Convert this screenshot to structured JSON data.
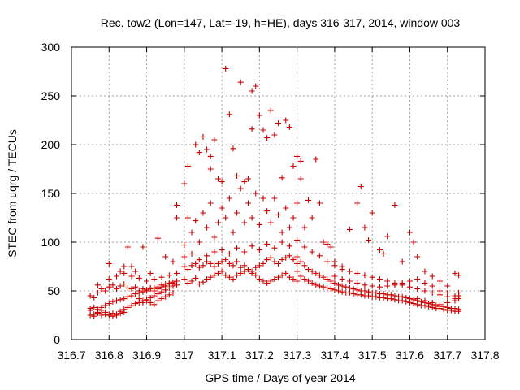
{
  "chart_data": {
    "type": "scatter",
    "title": "Rec. tow2 (Lon=147, Lat=-19, h=HE), days 316-317, 2014, window 003",
    "xlabel": "GPS time / Days of year 2014",
    "ylabel": "STEC from uqrg / TECUs",
    "xlim": [
      316.7,
      317.8
    ],
    "ylim": [
      0,
      300
    ],
    "xticks": [
      "316.7",
      "316.8",
      "316.9",
      "317",
      "317.1",
      "317.2",
      "317.3",
      "317.4",
      "317.5",
      "317.6",
      "317.7",
      "317.8"
    ],
    "yticks": [
      "0",
      "50",
      "100",
      "150",
      "200",
      "250",
      "300"
    ],
    "grid": true,
    "marker": "plus",
    "color": "#cc0000",
    "points": [
      [
        316.75,
        30
      ],
      [
        316.76,
        26
      ],
      [
        316.77,
        28
      ],
      [
        316.78,
        30
      ],
      [
        316.79,
        28
      ],
      [
        316.8,
        26
      ],
      [
        316.81,
        27
      ],
      [
        316.82,
        26
      ],
      [
        316.83,
        29
      ],
      [
        316.84,
        31
      ],
      [
        316.85,
        33
      ],
      [
        316.86,
        35
      ],
      [
        316.87,
        37
      ],
      [
        316.88,
        38
      ],
      [
        316.89,
        40
      ],
      [
        316.9,
        41
      ],
      [
        316.91,
        43
      ],
      [
        316.92,
        45
      ],
      [
        316.93,
        47
      ],
      [
        316.94,
        49
      ],
      [
        316.95,
        51
      ],
      [
        316.96,
        53
      ],
      [
        316.97,
        55
      ],
      [
        316.98,
        56
      ],
      [
        316.75,
        25
      ],
      [
        316.76,
        24
      ],
      [
        316.77,
        27
      ],
      [
        316.78,
        25
      ],
      [
        316.79,
        26
      ],
      [
        316.8,
        25
      ],
      [
        316.81,
        24
      ],
      [
        316.82,
        25
      ],
      [
        316.83,
        27
      ],
      [
        316.84,
        28
      ],
      [
        316.75,
        32
      ],
      [
        316.76,
        33
      ],
      [
        316.77,
        31
      ],
      [
        316.78,
        33
      ],
      [
        316.79,
        35
      ],
      [
        316.8,
        37
      ],
      [
        316.81,
        39
      ],
      [
        316.82,
        40
      ],
      [
        316.83,
        41
      ],
      [
        316.84,
        42
      ],
      [
        316.85,
        44
      ],
      [
        316.86,
        45
      ],
      [
        316.87,
        47
      ],
      [
        316.88,
        48
      ],
      [
        316.89,
        49
      ],
      [
        316.9,
        50
      ],
      [
        316.91,
        52
      ],
      [
        316.92,
        53
      ],
      [
        316.93,
        54
      ],
      [
        316.94,
        56
      ],
      [
        316.95,
        57
      ],
      [
        316.96,
        58
      ],
      [
        316.97,
        59
      ],
      [
        316.98,
        60
      ],
      [
        316.75,
        45
      ],
      [
        316.76,
        43
      ],
      [
        316.77,
        48
      ],
      [
        316.78,
        52
      ],
      [
        316.79,
        50
      ],
      [
        316.8,
        54
      ],
      [
        316.81,
        56
      ],
      [
        316.82,
        52
      ],
      [
        316.83,
        55
      ],
      [
        316.84,
        57
      ],
      [
        316.85,
        53
      ],
      [
        316.86,
        52
      ],
      [
        316.87,
        54
      ],
      [
        316.88,
        50
      ],
      [
        316.89,
        52
      ],
      [
        316.9,
        51
      ],
      [
        316.91,
        53
      ],
      [
        316.92,
        50
      ],
      [
        316.93,
        52
      ],
      [
        316.94,
        54
      ],
      [
        316.95,
        55
      ],
      [
        316.96,
        57
      ],
      [
        316.97,
        58
      ],
      [
        316.8,
        62
      ],
      [
        316.82,
        65
      ],
      [
        316.84,
        68
      ],
      [
        316.86,
        65
      ],
      [
        316.88,
        63
      ],
      [
        316.9,
        60
      ],
      [
        316.92,
        62
      ],
      [
        316.94,
        64
      ],
      [
        316.96,
        66
      ],
      [
        316.98,
        68
      ],
      [
        316.77,
        56
      ],
      [
        316.8,
        78
      ],
      [
        316.84,
        75
      ],
      [
        316.85,
        95
      ],
      [
        316.86,
        75
      ],
      [
        316.89,
        95
      ],
      [
        316.93,
        104
      ],
      [
        316.95,
        85
      ],
      [
        316.97,
        80
      ],
      [
        316.98,
        125
      ],
      [
        316.98,
        138
      ],
      [
        316.91,
        68
      ],
      [
        316.87,
        70
      ],
      [
        316.83,
        70
      ],
      [
        316.88,
        42
      ],
      [
        316.89,
        38
      ],
      [
        316.9,
        40
      ],
      [
        316.91,
        38
      ],
      [
        316.92,
        36
      ],
      [
        316.93,
        40
      ],
      [
        316.94,
        42
      ],
      [
        316.95,
        44
      ],
      [
        316.96,
        46
      ],
      [
        316.97,
        48
      ],
      [
        317.0,
        62
      ],
      [
        317.01,
        58
      ],
      [
        317.02,
        60
      ],
      [
        317.03,
        63
      ],
      [
        317.04,
        57
      ],
      [
        317.05,
        59
      ],
      [
        317.06,
        62
      ],
      [
        317.07,
        64
      ],
      [
        317.08,
        66
      ],
      [
        317.09,
        68
      ],
      [
        317.1,
        70
      ],
      [
        317.11,
        66
      ],
      [
        317.12,
        64
      ],
      [
        317.13,
        62
      ],
      [
        317.14,
        66
      ],
      [
        317.15,
        68
      ],
      [
        317.16,
        70
      ],
      [
        317.17,
        72
      ],
      [
        317.18,
        68
      ],
      [
        317.19,
        66
      ],
      [
        317.2,
        62
      ],
      [
        317.21,
        60
      ],
      [
        317.22,
        58
      ],
      [
        317.23,
        60
      ],
      [
        317.24,
        62
      ],
      [
        317.25,
        64
      ],
      [
        317.26,
        66
      ],
      [
        317.27,
        68
      ],
      [
        317.28,
        64
      ],
      [
        317.29,
        62
      ],
      [
        317.3,
        60
      ],
      [
        317.0,
        75
      ],
      [
        317.01,
        72
      ],
      [
        317.02,
        76
      ],
      [
        317.03,
        78
      ],
      [
        317.04,
        74
      ],
      [
        317.05,
        76
      ],
      [
        317.06,
        80
      ],
      [
        317.07,
        78
      ],
      [
        317.08,
        75
      ],
      [
        317.09,
        78
      ],
      [
        317.1,
        80
      ],
      [
        317.11,
        82
      ],
      [
        317.12,
        78
      ],
      [
        317.13,
        76
      ],
      [
        317.14,
        80
      ],
      [
        317.15,
        74
      ],
      [
        317.16,
        76
      ],
      [
        317.17,
        72
      ],
      [
        317.18,
        70
      ],
      [
        317.19,
        74
      ],
      [
        317.2,
        76
      ],
      [
        317.21,
        78
      ],
      [
        317.22,
        82
      ],
      [
        317.23,
        84
      ],
      [
        317.24,
        80
      ],
      [
        317.25,
        78
      ],
      [
        317.26,
        82
      ],
      [
        317.27,
        84
      ],
      [
        317.28,
        86
      ],
      [
        317.29,
        82
      ],
      [
        317.3,
        78
      ],
      [
        317.0,
        85
      ],
      [
        317.02,
        88
      ],
      [
        317.04,
        82
      ],
      [
        317.06,
        86
      ],
      [
        317.08,
        90
      ],
      [
        317.1,
        92
      ],
      [
        317.12,
        88
      ],
      [
        317.14,
        94
      ],
      [
        317.16,
        90
      ],
      [
        317.18,
        96
      ],
      [
        317.2,
        92
      ],
      [
        317.22,
        98
      ],
      [
        317.24,
        94
      ],
      [
        317.26,
        100
      ],
      [
        317.28,
        96
      ],
      [
        317.3,
        102
      ],
      [
        317.0,
        97
      ],
      [
        317.01,
        125
      ],
      [
        317.02,
        110
      ],
      [
        317.03,
        122
      ],
      [
        317.04,
        100
      ],
      [
        317.05,
        130
      ],
      [
        317.06,
        115
      ],
      [
        317.07,
        140
      ],
      [
        317.08,
        105
      ],
      [
        317.09,
        120
      ],
      [
        317.1,
        135
      ],
      [
        317.11,
        125
      ],
      [
        317.12,
        145
      ],
      [
        317.13,
        110
      ],
      [
        317.14,
        130
      ],
      [
        317.15,
        155
      ],
      [
        317.16,
        120
      ],
      [
        317.17,
        140
      ],
      [
        317.18,
        125
      ],
      [
        317.19,
        150
      ],
      [
        317.2,
        118
      ],
      [
        317.21,
        145
      ],
      [
        317.22,
        132
      ],
      [
        317.23,
        120
      ],
      [
        317.24,
        145
      ],
      [
        317.25,
        128
      ],
      [
        317.26,
        110
      ],
      [
        317.27,
        135
      ],
      [
        317.28,
        115
      ],
      [
        317.29,
        125
      ],
      [
        317.3,
        140
      ],
      [
        317.0,
        160
      ],
      [
        317.01,
        178
      ],
      [
        317.03,
        200
      ],
      [
        317.04,
        192
      ],
      [
        317.05,
        208
      ],
      [
        317.06,
        195
      ],
      [
        317.07,
        188
      ],
      [
        317.07,
        175
      ],
      [
        317.08,
        205
      ],
      [
        317.09,
        165
      ],
      [
        317.1,
        162
      ],
      [
        317.11,
        278
      ],
      [
        317.12,
        231
      ],
      [
        317.13,
        196
      ],
      [
        317.14,
        168
      ],
      [
        317.15,
        264
      ],
      [
        317.16,
        162
      ],
      [
        317.17,
        165
      ],
      [
        317.18,
        216
      ],
      [
        317.18,
        255
      ],
      [
        317.19,
        260
      ],
      [
        317.2,
        230
      ],
      [
        317.21,
        215
      ],
      [
        317.22,
        207
      ],
      [
        317.23,
        235
      ],
      [
        317.24,
        210
      ],
      [
        317.25,
        222
      ],
      [
        317.26,
        166
      ],
      [
        317.27,
        225
      ],
      [
        317.28,
        218
      ],
      [
        317.29,
        178
      ],
      [
        317.3,
        188
      ],
      [
        317.31,
        183
      ],
      [
        317.31,
        165
      ],
      [
        317.3,
        70
      ],
      [
        317.31,
        65
      ],
      [
        317.32,
        62
      ],
      [
        317.33,
        60
      ],
      [
        317.34,
        58
      ],
      [
        317.35,
        56
      ],
      [
        317.36,
        55
      ],
      [
        317.37,
        54
      ],
      [
        317.38,
        53
      ],
      [
        317.39,
        52
      ],
      [
        317.4,
        51
      ],
      [
        317.41,
        50
      ],
      [
        317.42,
        49
      ],
      [
        317.43,
        48
      ],
      [
        317.44,
        48
      ],
      [
        317.45,
        47
      ],
      [
        317.46,
        46
      ],
      [
        317.47,
        46
      ],
      [
        317.48,
        45
      ],
      [
        317.49,
        45
      ],
      [
        317.5,
        44
      ],
      [
        317.51,
        44
      ],
      [
        317.52,
        43
      ],
      [
        317.53,
        43
      ],
      [
        317.54,
        42
      ],
      [
        317.55,
        42
      ],
      [
        317.56,
        41
      ],
      [
        317.57,
        40
      ],
      [
        317.58,
        40
      ],
      [
        317.59,
        39
      ],
      [
        317.6,
        38
      ],
      [
        317.61,
        37
      ],
      [
        317.62,
        36
      ],
      [
        317.63,
        35
      ],
      [
        317.64,
        35
      ],
      [
        317.65,
        34
      ],
      [
        317.66,
        33
      ],
      [
        317.67,
        32
      ],
      [
        317.68,
        32
      ],
      [
        317.69,
        31
      ],
      [
        317.7,
        30
      ],
      [
        317.71,
        30
      ],
      [
        317.72,
        29
      ],
      [
        317.73,
        29
      ],
      [
        317.3,
        85
      ],
      [
        317.31,
        80
      ],
      [
        317.32,
        76
      ],
      [
        317.33,
        72
      ],
      [
        317.34,
        70
      ],
      [
        317.35,
        68
      ],
      [
        317.36,
        66
      ],
      [
        317.37,
        64
      ],
      [
        317.38,
        62
      ],
      [
        317.39,
        60
      ],
      [
        317.4,
        58
      ],
      [
        317.41,
        56
      ],
      [
        317.42,
        55
      ],
      [
        317.43,
        54
      ],
      [
        317.44,
        53
      ],
      [
        317.45,
        52
      ],
      [
        317.46,
        51
      ],
      [
        317.47,
        50
      ],
      [
        317.48,
        50
      ],
      [
        317.49,
        49
      ],
      [
        317.5,
        48
      ],
      [
        317.51,
        48
      ],
      [
        317.52,
        47
      ],
      [
        317.53,
        47
      ],
      [
        317.54,
        46
      ],
      [
        317.55,
        46
      ],
      [
        317.56,
        45
      ],
      [
        317.57,
        44
      ],
      [
        317.58,
        44
      ],
      [
        317.59,
        43
      ],
      [
        317.6,
        42
      ],
      [
        317.61,
        41
      ],
      [
        317.62,
        40
      ],
      [
        317.63,
        39
      ],
      [
        317.64,
        38
      ],
      [
        317.65,
        37
      ],
      [
        317.66,
        36
      ],
      [
        317.67,
        35
      ],
      [
        317.68,
        34
      ],
      [
        317.69,
        34
      ],
      [
        317.7,
        33
      ],
      [
        317.71,
        32
      ],
      [
        317.72,
        32
      ],
      [
        317.73,
        31
      ],
      [
        317.32,
        95
      ],
      [
        317.34,
        90
      ],
      [
        317.36,
        86
      ],
      [
        317.38,
        80
      ],
      [
        317.4,
        76
      ],
      [
        317.42,
        72
      ],
      [
        317.44,
        70
      ],
      [
        317.46,
        68
      ],
      [
        317.48,
        66
      ],
      [
        317.5,
        64
      ],
      [
        317.52,
        62
      ],
      [
        317.54,
        60
      ],
      [
        317.56,
        58
      ],
      [
        317.58,
        56
      ],
      [
        317.6,
        54
      ],
      [
        317.62,
        52
      ],
      [
        317.64,
        50
      ],
      [
        317.66,
        48
      ],
      [
        317.68,
        46
      ],
      [
        317.7,
        44
      ],
      [
        317.72,
        42
      ],
      [
        317.73,
        45
      ],
      [
        317.32,
        115
      ],
      [
        317.33,
        143
      ],
      [
        317.34,
        125
      ],
      [
        317.35,
        185
      ],
      [
        317.36,
        140
      ],
      [
        317.37,
        100
      ],
      [
        317.38,
        98
      ],
      [
        317.39,
        95
      ],
      [
        317.4,
        80
      ],
      [
        317.42,
        75
      ],
      [
        317.44,
        113
      ],
      [
        317.46,
        140
      ],
      [
        317.47,
        157
      ],
      [
        317.48,
        115
      ],
      [
        317.49,
        102
      ],
      [
        317.5,
        130
      ],
      [
        317.52,
        92
      ],
      [
        317.53,
        88
      ],
      [
        317.54,
        106
      ],
      [
        317.56,
        138
      ],
      [
        317.58,
        80
      ],
      [
        317.6,
        110
      ],
      [
        317.61,
        100
      ],
      [
        317.62,
        85
      ],
      [
        317.64,
        70
      ],
      [
        317.66,
        65
      ],
      [
        317.68,
        60
      ],
      [
        317.7,
        55
      ],
      [
        317.72,
        68
      ],
      [
        317.73,
        66
      ],
      [
        317.4,
        65
      ],
      [
        317.42,
        62
      ],
      [
        317.44,
        60
      ],
      [
        317.46,
        58
      ],
      [
        317.48,
        56
      ],
      [
        317.5,
        55
      ],
      [
        317.52,
        54
      ],
      [
        317.54,
        55
      ],
      [
        317.56,
        56
      ],
      [
        317.58,
        58
      ],
      [
        317.6,
        60
      ],
      [
        317.62,
        62
      ],
      [
        317.64,
        58
      ],
      [
        317.66,
        55
      ],
      [
        317.68,
        50
      ],
      [
        317.7,
        48
      ],
      [
        317.72,
        45
      ],
      [
        317.73,
        48
      ],
      [
        317.62,
        42
      ],
      [
        317.64,
        40
      ],
      [
        317.66,
        38
      ],
      [
        317.68,
        36
      ],
      [
        317.7,
        38
      ],
      [
        317.72,
        40
      ],
      [
        317.73,
        42
      ]
    ]
  }
}
